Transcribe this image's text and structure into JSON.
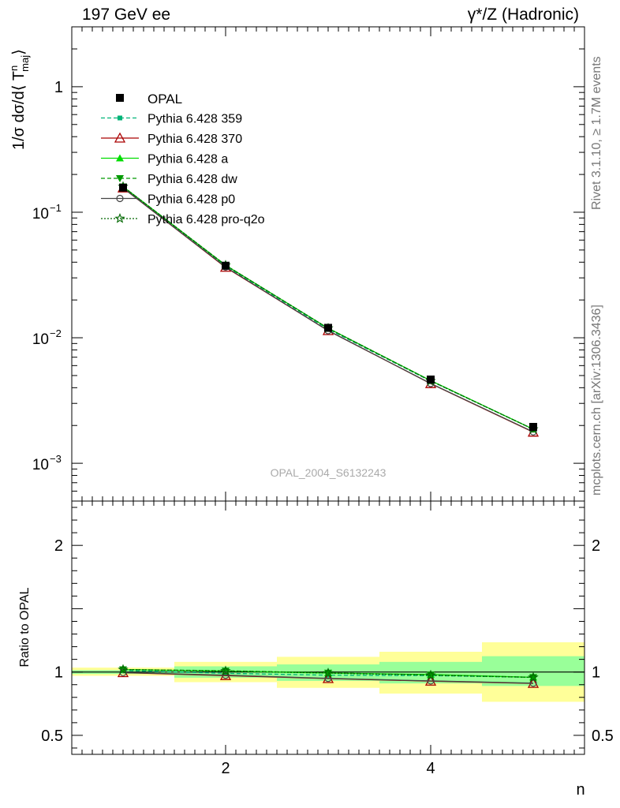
{
  "header": {
    "left_title": "197 GeV ee",
    "right_title": "γ*/Z (Hadronic)"
  },
  "side_labels": {
    "rivet": "Rivet 3.1.10, ≥ 1.7M events",
    "mcplots": "mcplots.cern.ch [arXiv:1306.3436]"
  },
  "analysis_id": "OPAL_2004_S6132243",
  "chart_data": [
    {
      "type": "line",
      "panel": "main",
      "yscale": "log",
      "ylabel_parts": {
        "prefix": "1/σ dσ/d⟨ T",
        "sup": "n",
        "sub": "maj",
        "suffix": "⟩"
      },
      "xlim": [
        0.5,
        5.5
      ],
      "ylim": [
        0.0005,
        3
      ],
      "ytick_labels": [
        {
          "value": 1,
          "base": "1",
          "exp": ""
        },
        {
          "value": 0.1,
          "base": "10",
          "exp": "−1"
        },
        {
          "value": 0.01,
          "base": "10",
          "exp": "−2"
        },
        {
          "value": 0.001,
          "base": "10",
          "exp": "−3"
        }
      ],
      "x": [
        1,
        2,
        3,
        4,
        5
      ],
      "data": {
        "name": "OPAL",
        "values": [
          0.157,
          0.0375,
          0.012,
          0.00465,
          0.00195
        ]
      },
      "series": [
        {
          "name": "Pythia 6.428 359",
          "color": "#00b377",
          "dash": "5,3",
          "marker": "square-small",
          "values": [
            0.159,
            0.0372,
            0.0117,
            0.00452,
            0.00187
          ]
        },
        {
          "name": "Pythia 6.428 370",
          "color": "#aa0000",
          "dash": "",
          "marker": "triangle-open",
          "values": [
            0.156,
            0.0364,
            0.0114,
            0.00431,
            0.00177
          ]
        },
        {
          "name": "Pythia 6.428 a",
          "color": "#00dd00",
          "dash": "",
          "marker": "triangle-filled",
          "values": [
            0.16,
            0.0378,
            0.0119,
            0.00456,
            0.00187
          ]
        },
        {
          "name": "Pythia 6.428 dw",
          "color": "#009900",
          "dash": "5,3",
          "marker": "triangle-down",
          "values": [
            0.16,
            0.0379,
            0.0119,
            0.00455,
            0.00187
          ]
        },
        {
          "name": "Pythia 6.428 p0",
          "color": "#444444",
          "dash": "",
          "marker": "circle-open",
          "values": [
            0.156,
            0.0366,
            0.0114,
            0.00432,
            0.00178
          ]
        },
        {
          "name": "Pythia 6.428 pro-q2o",
          "color": "#006600",
          "dash": "2,2",
          "marker": "star",
          "values": [
            0.16,
            0.0378,
            0.0119,
            0.00453,
            0.00187
          ]
        }
      ]
    },
    {
      "type": "line",
      "panel": "ratio",
      "ylabel": "Ratio to OPAL",
      "xlabel": "n",
      "xlim": [
        0.5,
        5.5
      ],
      "ylim": [
        0.35,
        2.35
      ],
      "xtick_labels": [
        "2",
        "4"
      ],
      "ytick_labels": [
        "2",
        "1",
        "0.5"
      ],
      "bins": [
        {
          "lo": 0.5,
          "hi": 1.5,
          "stat": [
            0.985,
            1.015
          ],
          "total": [
            0.97,
            1.035
          ]
        },
        {
          "lo": 1.5,
          "hi": 2.5,
          "stat": [
            0.955,
            1.045
          ],
          "total": [
            0.92,
            1.08
          ]
        },
        {
          "lo": 2.5,
          "hi": 3.5,
          "stat": [
            0.93,
            1.06
          ],
          "total": [
            0.875,
            1.12
          ]
        },
        {
          "lo": 3.5,
          "hi": 4.5,
          "stat": [
            0.91,
            1.08
          ],
          "total": [
            0.83,
            1.16
          ]
        },
        {
          "lo": 4.5,
          "hi": 5.5,
          "stat": [
            0.89,
            1.125
          ],
          "total": [
            0.765,
            1.235
          ]
        }
      ],
      "x": [
        1,
        2,
        3,
        4,
        5
      ],
      "series": [
        {
          "name": "Pythia 6.428 359",
          "values": [
            1.012,
            0.99,
            0.975,
            0.972,
            0.958
          ]
        },
        {
          "name": "Pythia 6.428 370",
          "values": [
            0.995,
            0.972,
            0.948,
            0.928,
            0.91
          ]
        },
        {
          "name": "Pythia 6.428 a",
          "values": [
            1.019,
            1.008,
            0.992,
            0.98,
            0.958
          ]
        },
        {
          "name": "Pythia 6.428 dw",
          "values": [
            1.02,
            1.01,
            0.993,
            0.978,
            0.958
          ]
        },
        {
          "name": "Pythia 6.428 p0",
          "values": [
            0.996,
            0.975,
            0.95,
            0.93,
            0.912
          ]
        },
        {
          "name": "Pythia 6.428 pro-q2o",
          "values": [
            1.02,
            1.008,
            0.992,
            0.975,
            0.958
          ]
        }
      ]
    }
  ]
}
